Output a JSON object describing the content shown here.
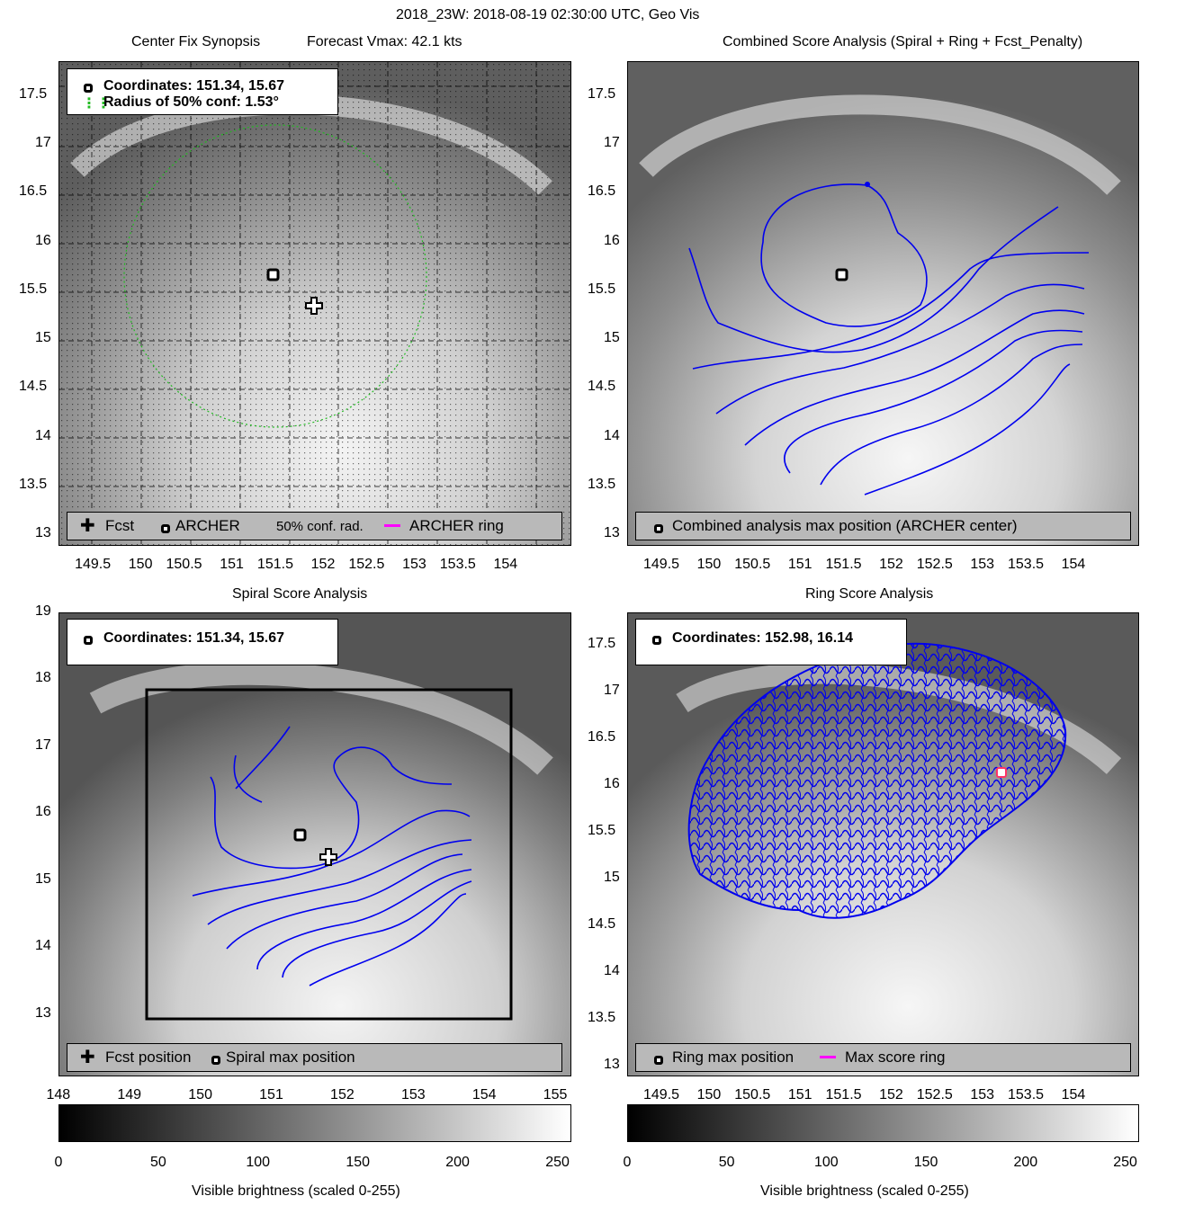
{
  "suptitle": "2018_23W: 2018-08-19 02:30:00 UTC, Geo Vis",
  "panels": {
    "p1": {
      "title_left": "Center Fix Synopsis",
      "title_right": "Forecast Vmax: 42.1 kts",
      "legend_top": [
        "Coordinates: 151.34, 15.67",
        "Radius of 50% conf: 1.53°"
      ],
      "legend_bot": {
        "fcst": "Fcst",
        "archer": "ARCHER",
        "conf": "50% conf. rad.",
        "ring": "ARCHER ring"
      }
    },
    "p2": {
      "title": "Combined Score Analysis (Spiral + Ring + Fcst_Penalty)",
      "legend_bot": "Combined analysis max position (ARCHER center)"
    },
    "p3": {
      "title": "Spiral Score Analysis",
      "legend_top": "Coordinates: 151.34, 15.67",
      "legend_bot": {
        "fcst": "Fcst position",
        "spiral": "Spiral max position"
      }
    },
    "p4": {
      "title": "Ring Score Analysis",
      "legend_top": "Coordinates: 152.98, 16.14",
      "legend_bot": {
        "ring": "Ring max position",
        "score": "Max score ring"
      }
    }
  },
  "colorbar": {
    "label": "Visible brightness (scaled 0-255)",
    "ticks": [
      "0",
      "50",
      "100",
      "150",
      "200",
      "250"
    ]
  },
  "colors": {
    "contour": "#0000ee",
    "conf_circle": "#22bb22",
    "ring": "#ff00ff"
  },
  "chart_data": [
    {
      "type": "heatmap",
      "panel": "p1",
      "xticks": [
        "149.5",
        "150",
        "150.5",
        "151",
        "151.5",
        "152",
        "152.5",
        "153",
        "153.5",
        "154"
      ],
      "yticks": [
        "13",
        "13.5",
        "14",
        "14.5",
        "15",
        "15.5",
        "16",
        "16.5",
        "17",
        "17.5"
      ],
      "xlim": [
        149.1,
        154.7
      ],
      "ylim": [
        12.9,
        17.85
      ],
      "archer_center": [
        151.34,
        15.67
      ],
      "forecast_position": [
        151.75,
        15.37
      ],
      "conf_radius_deg": 1.53
    },
    {
      "type": "heatmap",
      "panel": "p2",
      "xticks": [
        "149.5",
        "150",
        "150.5",
        "151",
        "151.5",
        "152",
        "152.5",
        "153",
        "153.5",
        "154"
      ],
      "yticks": [
        "13",
        "13.5",
        "14",
        "14.5",
        "15",
        "15.5",
        "16",
        "16.5",
        "17",
        "17.5"
      ],
      "xlim": [
        149.1,
        154.7
      ],
      "ylim": [
        12.9,
        17.85
      ],
      "max_position": [
        151.34,
        15.67
      ]
    },
    {
      "type": "heatmap",
      "panel": "p3",
      "xticks": [
        "148",
        "149",
        "150",
        "151",
        "152",
        "153",
        "154",
        "155"
      ],
      "yticks": [
        "13",
        "14",
        "15",
        "16",
        "17",
        "18",
        "19"
      ],
      "xlim": [
        148,
        155.2
      ],
      "ylim": [
        12.1,
        19
      ],
      "spiral_max": [
        151.34,
        15.67
      ],
      "forecast_position": [
        151.75,
        15.37
      ],
      "search_box": {
        "x": [
          149.2,
          154.2
        ],
        "y": [
          12.9,
          17.9
        ]
      }
    },
    {
      "type": "heatmap",
      "panel": "p4",
      "xticks": [
        "149.5",
        "150",
        "150.5",
        "151",
        "151.5",
        "152",
        "152.5",
        "153",
        "153.5",
        "154"
      ],
      "yticks": [
        "13",
        "13.5",
        "14",
        "14.5",
        "15",
        "15.5",
        "16",
        "16.5",
        "17",
        "17.5"
      ],
      "xlim": [
        149.1,
        154.7
      ],
      "ylim": [
        12.9,
        17.85
      ],
      "ring_max": [
        152.98,
        16.14
      ]
    }
  ]
}
